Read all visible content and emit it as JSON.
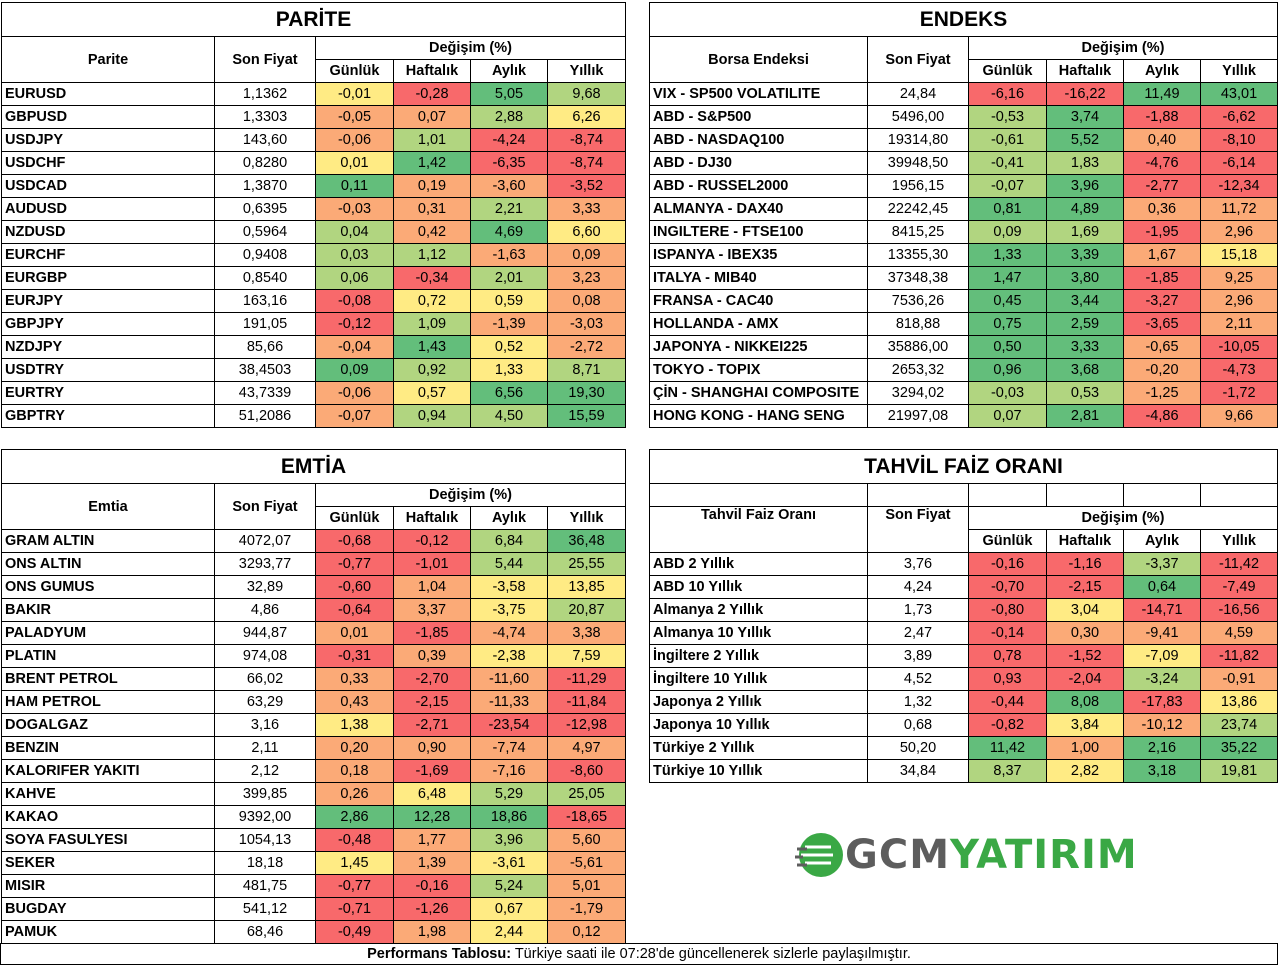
{
  "columns": {
    "son_fiyat": "Son Fiyat",
    "degisim": "Değişim (%)",
    "gunluk": "Günlük",
    "haftalik": "Haftalık",
    "aylik": "Aylık",
    "yillik": "Yıllık"
  },
  "parite": {
    "title": "PARİTE",
    "name_header": "Parite",
    "rows": [
      [
        "EURUSD",
        "1,1362",
        "-0,01",
        "-0,28",
        "5,05",
        "9,68"
      ],
      [
        "GBPUSD",
        "1,3303",
        "-0,05",
        "0,07",
        "2,88",
        "6,26"
      ],
      [
        "USDJPY",
        "143,60",
        "-0,06",
        "1,01",
        "-4,24",
        "-8,74"
      ],
      [
        "USDCHF",
        "0,8280",
        "0,01",
        "1,42",
        "-6,35",
        "-8,74"
      ],
      [
        "USDCAD",
        "1,3870",
        "0,11",
        "0,19",
        "-3,60",
        "-3,52"
      ],
      [
        "AUDUSD",
        "0,6395",
        "-0,03",
        "0,31",
        "2,21",
        "3,33"
      ],
      [
        "NZDUSD",
        "0,5964",
        "0,04",
        "0,42",
        "4,69",
        "6,60"
      ],
      [
        "EURCHF",
        "0,9408",
        "0,03",
        "1,12",
        "-1,63",
        "0,09"
      ],
      [
        "EURGBP",
        "0,8540",
        "0,06",
        "-0,34",
        "2,01",
        "3,23"
      ],
      [
        "EURJPY",
        "163,16",
        "-0,08",
        "0,72",
        "0,59",
        "0,08"
      ],
      [
        "GBPJPY",
        "191,05",
        "-0,12",
        "1,09",
        "-1,39",
        "-3,03"
      ],
      [
        "NZDJPY",
        "85,66",
        "-0,04",
        "1,43",
        "0,52",
        "-2,72"
      ],
      [
        "USDTRY",
        "38,4503",
        "0,09",
        "0,92",
        "1,33",
        "8,71"
      ],
      [
        "EURTRY",
        "43,7339",
        "-0,06",
        "0,57",
        "6,56",
        "19,30"
      ],
      [
        "GBPTRY",
        "51,2086",
        "-0,07",
        "0,94",
        "4,50",
        "15,59"
      ]
    ]
  },
  "endeks": {
    "title": "ENDEKS",
    "name_header": "Borsa Endeksi",
    "rows": [
      [
        "VIX  - SP500 VOLATILITE",
        "24,84",
        "-6,16",
        "-16,22",
        "11,49",
        "43,01"
      ],
      [
        "ABD - S&P500",
        "5496,00",
        "-0,53",
        "3,74",
        "-1,88",
        "-6,62"
      ],
      [
        "ABD - NASDAQ100",
        "19314,80",
        "-0,61",
        "5,52",
        "0,40",
        "-8,10"
      ],
      [
        "ABD - DJ30",
        "39948,50",
        "-0,41",
        "1,83",
        "-4,76",
        "-6,14"
      ],
      [
        "ABD - RUSSEL2000",
        "1956,15",
        "-0,07",
        "3,96",
        "-2,77",
        "-12,34"
      ],
      [
        "ALMANYA - DAX40",
        "22242,45",
        "0,81",
        "4,89",
        "0,36",
        "11,72"
      ],
      [
        "INGILTERE - FTSE100",
        "8415,25",
        "0,09",
        "1,69",
        "-1,95",
        "2,96"
      ],
      [
        "ISPANYA - IBEX35",
        "13355,30",
        "1,33",
        "3,39",
        "1,67",
        "15,18"
      ],
      [
        "ITALYA - MIB40",
        "37348,38",
        "1,47",
        "3,80",
        "-1,85",
        "9,25"
      ],
      [
        "FRANSA - CAC40",
        "7536,26",
        "0,45",
        "3,44",
        "-3,27",
        "2,96"
      ],
      [
        "HOLLANDA - AMX",
        "818,88",
        "0,75",
        "2,59",
        "-3,65",
        "2,11"
      ],
      [
        "JAPONYA - NIKKEI225",
        "35886,00",
        "0,50",
        "3,33",
        "-0,65",
        "-10,05"
      ],
      [
        "TOKYO - TOPIX",
        "2653,32",
        "0,96",
        "3,68",
        "-0,20",
        "-4,73"
      ],
      [
        "ÇİN - SHANGHAI COMPOSITE",
        "3294,02",
        "-0,03",
        "0,53",
        "-1,25",
        "-1,72"
      ],
      [
        "HONG KONG - HANG SENG",
        "21997,08",
        "0,07",
        "2,81",
        "-4,86",
        "9,66"
      ]
    ]
  },
  "emtia": {
    "title": "EMTİA",
    "name_header": "Emtia",
    "rows": [
      [
        "GRAM ALTIN",
        "4072,07",
        "-0,68",
        "-0,12",
        "6,84",
        "36,48"
      ],
      [
        "ONS ALTIN",
        "3293,77",
        "-0,77",
        "-1,01",
        "5,44",
        "25,55"
      ],
      [
        "ONS GUMUS",
        "32,89",
        "-0,60",
        "1,04",
        "-3,58",
        "13,85"
      ],
      [
        "BAKIR",
        "4,86",
        "-0,64",
        "3,37",
        "-3,75",
        "20,87"
      ],
      [
        "PALADYUM",
        "944,87",
        "0,01",
        "-1,85",
        "-4,74",
        "3,38"
      ],
      [
        "PLATIN",
        "974,08",
        "-0,31",
        "0,39",
        "-2,38",
        "7,59"
      ],
      [
        "BRENT PETROL",
        "66,02",
        "0,33",
        "-2,70",
        "-11,60",
        "-11,29"
      ],
      [
        "HAM PETROL",
        "63,29",
        "0,43",
        "-2,15",
        "-11,33",
        "-11,84"
      ],
      [
        "DOGALGAZ",
        "3,16",
        "1,38",
        "-2,71",
        "-23,54",
        "-12,98"
      ],
      [
        "BENZIN",
        "2,11",
        "0,20",
        "0,90",
        "-7,74",
        "4,97"
      ],
      [
        "KALORIFER YAKITI",
        "2,12",
        "0,18",
        "-1,69",
        "-7,16",
        "-8,60"
      ],
      [
        "KAHVE",
        "399,85",
        "0,26",
        "6,48",
        "5,29",
        "25,05"
      ],
      [
        "KAKAO",
        "9392,00",
        "2,86",
        "12,28",
        "18,86",
        "-18,65"
      ],
      [
        "SOYA FASULYESI",
        "1054,13",
        "-0,48",
        "1,77",
        "3,96",
        "5,60"
      ],
      [
        "SEKER",
        "18,18",
        "1,45",
        "1,39",
        "-3,61",
        "-5,61"
      ],
      [
        "MISIR",
        "481,75",
        "-0,77",
        "-0,16",
        "5,24",
        "5,01"
      ],
      [
        "BUGDAY",
        "541,12",
        "-0,71",
        "-1,26",
        "0,67",
        "-1,79"
      ],
      [
        "PAMUK",
        "68,46",
        "-0,49",
        "1,98",
        "2,44",
        "0,12"
      ]
    ]
  },
  "tahvil": {
    "title": "TAHVİL FAİZ ORANI",
    "name_header": "Tahvil Faiz Oranı",
    "rows": [
      [
        "ABD 2 Yıllık",
        "3,76",
        "-0,16",
        "-1,16",
        "-3,37",
        "-11,42"
      ],
      [
        "ABD 10 Yıllık",
        "4,24",
        "-0,70",
        "-2,15",
        "0,64",
        "-7,49"
      ],
      [
        "Almanya 2 Yıllık",
        "1,73",
        "-0,80",
        "3,04",
        "-14,71",
        "-16,56"
      ],
      [
        "Almanya 10 Yıllık",
        "2,47",
        "-0,14",
        "0,30",
        "-9,41",
        "4,59"
      ],
      [
        "İngiltere 2 Yıllık",
        "3,89",
        "0,78",
        "-1,52",
        "-7,09",
        "-11,82"
      ],
      [
        "İngiltere 10 Yıllık",
        "4,52",
        "0,93",
        "-2,04",
        "-3,24",
        "-0,91"
      ],
      [
        "Japonya 2 Yıllık",
        "1,32",
        "-0,44",
        "8,08",
        "-17,83",
        "13,86"
      ],
      [
        "Japonya 10 Yıllık",
        "0,68",
        "-0,82",
        "3,84",
        "-10,12",
        "23,74"
      ],
      [
        "Türkiye 2 Yıllık",
        "50,20",
        "11,42",
        "1,00",
        "2,16",
        "35,22"
      ],
      [
        "Türkiye 10 Yıllık",
        "34,84",
        "8,37",
        "2,82",
        "3,18",
        "19,81"
      ]
    ]
  },
  "logo": {
    "part1": "GCM",
    "part2": "YATIRIM"
  },
  "footer": {
    "bold": "Performans Tablosu:",
    "text": " Türkiye saati ile 07:28'de güncellenerek sizlerle paylaşılmıştır."
  },
  "colors": {
    "red": "#f8696b",
    "orange": "#fbaa77",
    "yellow": "#ffeb84",
    "lightgreen": "#b1d580",
    "green": "#63be7b"
  }
}
